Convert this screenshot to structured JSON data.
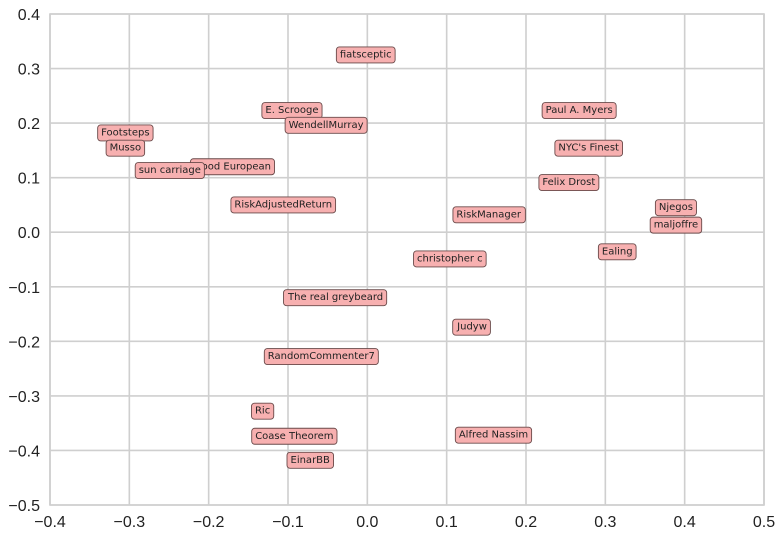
{
  "chart_data": {
    "type": "scatter",
    "title": "",
    "xlabel": "",
    "ylabel": "",
    "xlim": [
      -0.4,
      0.5
    ],
    "ylim": [
      -0.5,
      0.4
    ],
    "grid": true,
    "x_ticks": [
      -0.4,
      -0.3,
      -0.2,
      -0.1,
      0.0,
      0.1,
      0.2,
      0.3,
      0.4,
      0.5
    ],
    "x_tick_labels": [
      "−0.4",
      "−0.3",
      "−0.2",
      "−0.1",
      "0.0",
      "0.1",
      "0.2",
      "0.3",
      "0.4",
      "0.5"
    ],
    "y_ticks": [
      0.4,
      0.3,
      0.2,
      0.1,
      0.0,
      -0.1,
      -0.2,
      -0.3,
      -0.4,
      -0.5
    ],
    "y_tick_labels": [
      "0.4",
      "0.3",
      "0.2",
      "0.1",
      "0.0",
      "−0.1",
      "−0.2",
      "−0.3",
      "−0.4",
      "−0.5"
    ],
    "colors": {
      "box_fill": "#f7b0b0",
      "box_edge": "#6a4a4a",
      "grid": "#cfcfcf"
    },
    "points": [
      {
        "label": "fiatsceptic",
        "x": -0.002,
        "y": 0.325
      },
      {
        "label": "E. Scrooge",
        "x": -0.095,
        "y": 0.223
      },
      {
        "label": "WendellMurray",
        "x": -0.052,
        "y": 0.196
      },
      {
        "label": "Paul A. Myers",
        "x": 0.267,
        "y": 0.223
      },
      {
        "label": "Footsteps",
        "x": -0.305,
        "y": 0.182
      },
      {
        "label": "Musso",
        "x": -0.305,
        "y": 0.154
      },
      {
        "label": "NYC's Finest",
        "x": 0.279,
        "y": 0.154
      },
      {
        "label": "Good European",
        "x": -0.17,
        "y": 0.12
      },
      {
        "label": "sun carriage",
        "x": -0.249,
        "y": 0.113
      },
      {
        "label": "Felix Drost",
        "x": 0.254,
        "y": 0.091
      },
      {
        "label": "RiskAdjustedReturn",
        "x": -0.106,
        "y": 0.05
      },
      {
        "label": "Njegos",
        "x": 0.389,
        "y": 0.045
      },
      {
        "label": "RiskManager",
        "x": 0.153,
        "y": 0.032
      },
      {
        "label": "maljoffre",
        "x": 0.389,
        "y": 0.013
      },
      {
        "label": "Ealing",
        "x": 0.315,
        "y": -0.036
      },
      {
        "label": "christopher c",
        "x": 0.104,
        "y": -0.049
      },
      {
        "label": "The real greybeard",
        "x": -0.04,
        "y": -0.12
      },
      {
        "label": "Judyw",
        "x": 0.132,
        "y": -0.174
      },
      {
        "label": "RandomCommenter7",
        "x": -0.058,
        "y": -0.228
      },
      {
        "label": "Ric",
        "x": -0.132,
        "y": -0.328
      },
      {
        "label": "Alfred Nassim",
        "x": 0.159,
        "y": -0.372
      },
      {
        "label": "Coase Theorem",
        "x": -0.092,
        "y": -0.374
      },
      {
        "label": "EinarBB",
        "x": -0.072,
        "y": -0.418
      }
    ]
  }
}
